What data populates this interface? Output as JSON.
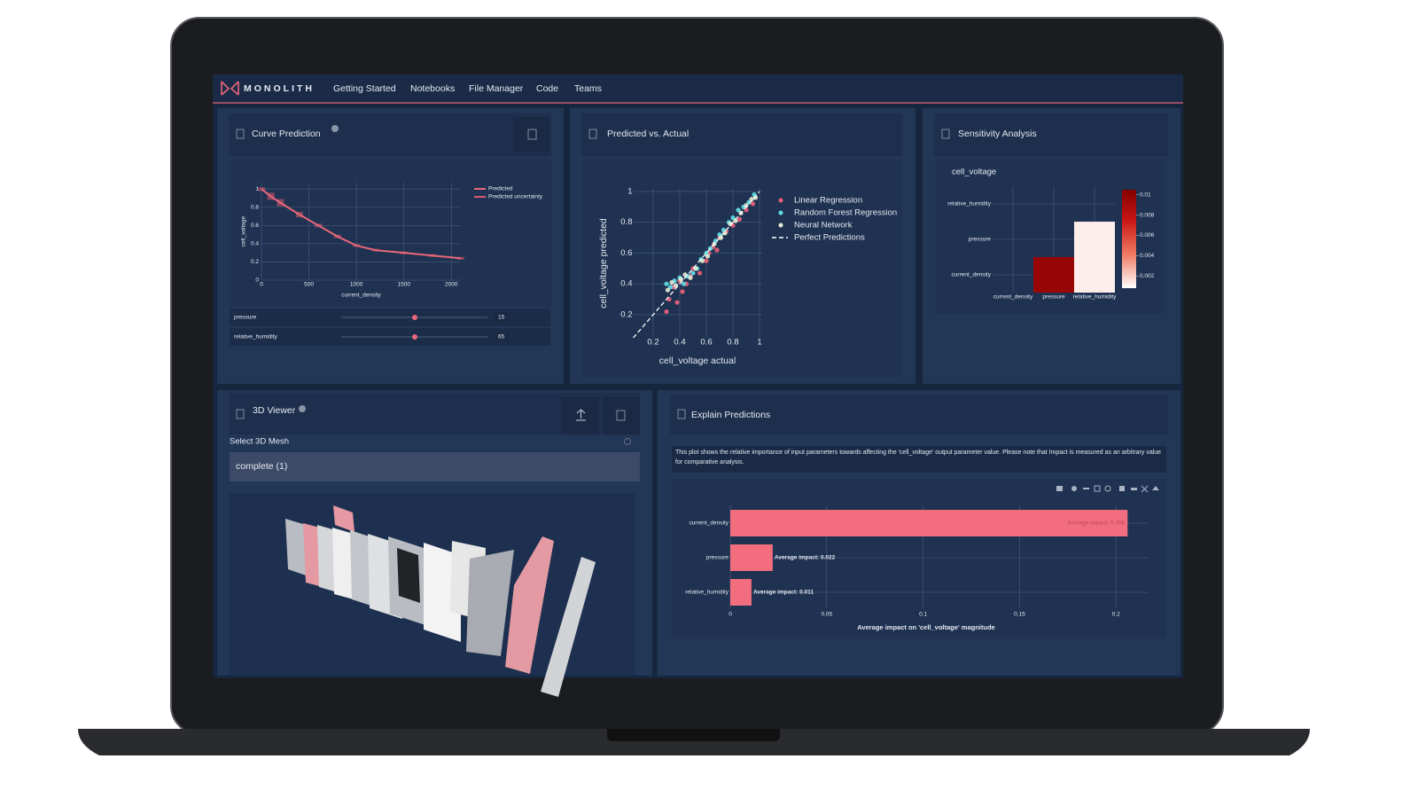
{
  "nav": {
    "brand": "MONOLITH",
    "items": [
      "Getting Started",
      "Notebooks",
      "File Manager",
      "Code",
      "Teams"
    ]
  },
  "curve_prediction": {
    "type": "line",
    "title": "Curve Prediction",
    "x_label": "current_density",
    "y_label": "cell_voltage",
    "x": [
      0,
      100,
      200,
      400,
      600,
      800,
      1000,
      1200,
      1500,
      1800,
      2100
    ],
    "series": [
      {
        "name": "Predicted",
        "color": "#e8677a",
        "values": [
          1,
          0.92,
          0.85,
          0.72,
          0.6,
          0.48,
          0.38,
          0.33,
          0.3,
          0.27,
          0.24
        ]
      },
      {
        "name": "Predicted uncertainty",
        "color": "#d85a70",
        "values": [
          0.02,
          0.04,
          0.04,
          0.03,
          0.02,
          0.02,
          0.015,
          0.015,
          0.015,
          0.015,
          0.015
        ]
      }
    ],
    "xlim": [
      0,
      2100
    ],
    "ylim": [
      0,
      1.07
    ],
    "xticks": [
      0,
      500,
      1000,
      1500,
      2000
    ],
    "yticks": [
      0,
      0.2,
      0.4,
      0.6,
      0.8,
      1
    ],
    "grid": true,
    "sliders": [
      {
        "name": "pressure",
        "value": 15
      },
      {
        "name": "relative_humidity",
        "value": 65
      }
    ]
  },
  "predicted_vs_actual": {
    "type": "scatter",
    "title": "Predicted vs. Actual",
    "x_label": "cell_voltage actual",
    "y_label": "cell_voltage predicted",
    "xlim": [
      0.05,
      1.02
    ],
    "ylim": [
      0.05,
      1.02
    ],
    "xticks": [
      0.2,
      0.4,
      0.6,
      0.8,
      1
    ],
    "yticks": [
      0.2,
      0.4,
      0.6,
      0.8,
      1
    ],
    "grid": true,
    "series": [
      {
        "name": "Linear Regression",
        "color": "#f0607a",
        "x": [
          0.3,
          0.32,
          0.35,
          0.38,
          0.4,
          0.42,
          0.45,
          0.48,
          0.5,
          0.55,
          0.6,
          0.62,
          0.65,
          0.68,
          0.7,
          0.75,
          0.8,
          0.85,
          0.9,
          0.95
        ],
        "values": [
          0.22,
          0.3,
          0.38,
          0.28,
          0.42,
          0.35,
          0.4,
          0.45,
          0.5,
          0.47,
          0.55,
          0.6,
          0.64,
          0.62,
          0.7,
          0.74,
          0.78,
          0.82,
          0.88,
          0.92
        ]
      },
      {
        "name": "Random Forest Regression",
        "color": "#5fe0e8",
        "x": [
          0.3,
          0.33,
          0.36,
          0.4,
          0.43,
          0.46,
          0.5,
          0.53,
          0.56,
          0.6,
          0.63,
          0.67,
          0.7,
          0.73,
          0.77,
          0.8,
          0.84,
          0.88,
          0.92,
          0.96
        ],
        "values": [
          0.4,
          0.38,
          0.42,
          0.44,
          0.4,
          0.45,
          0.47,
          0.5,
          0.56,
          0.6,
          0.63,
          0.68,
          0.72,
          0.75,
          0.8,
          0.83,
          0.88,
          0.9,
          0.93,
          0.98
        ]
      },
      {
        "name": "Neural Network",
        "color": "#e6ecd6",
        "x": [
          0.31,
          0.34,
          0.37,
          0.41,
          0.44,
          0.48,
          0.52,
          0.57,
          0.61,
          0.66,
          0.71,
          0.74,
          0.78,
          0.82,
          0.86,
          0.9,
          0.94,
          0.97
        ],
        "values": [
          0.36,
          0.41,
          0.39,
          0.43,
          0.46,
          0.44,
          0.5,
          0.55,
          0.58,
          0.66,
          0.7,
          0.73,
          0.79,
          0.81,
          0.86,
          0.91,
          0.95,
          0.96
        ]
      },
      {
        "name": "Perfect Predictions",
        "color": "#ffffff",
        "dash": true,
        "x": [
          0.05,
          1
        ],
        "values": [
          0.05,
          1
        ]
      }
    ]
  },
  "sensitivity_analysis": {
    "type": "heatmap",
    "title": "Sensitivity Analysis",
    "subtitle": "cell_voltage",
    "x_categories": [
      "current_density",
      "pressure",
      "relative_humidity"
    ],
    "y_categories": [
      "current_density",
      "pressure",
      "relative_humidity"
    ],
    "z": [
      [
        null,
        0.0095,
        0.0012
      ],
      [
        null,
        null,
        0.0012
      ],
      [
        null,
        null,
        null
      ]
    ],
    "zlim": [
      0.0008,
      0.0105
    ],
    "zticks": [
      0.002,
      0.004,
      0.006,
      0.008,
      0.01
    ]
  },
  "viewer_3d": {
    "title": "3D Viewer",
    "select_label": "Select 3D Mesh",
    "selected": "complete (1)"
  },
  "explain_predictions": {
    "type": "bar",
    "horizontal": true,
    "title": "Explain Predictions",
    "description": "This plot shows the relative importance of input parameters towards affecting the 'cell_voltage' output parameter value. Please note that Impact is measured as an arbitrary value for comparative analysis.",
    "categories": [
      "current_density",
      "pressure",
      "relative_humidity"
    ],
    "values": [
      0.206,
      0.022,
      0.011
    ],
    "value_labels": [
      "Average impact: 0.206",
      "Average impact: 0.022",
      "Average impact: 0.011"
    ],
    "color": "#f26d7d",
    "xlim": [
      0,
      0.21
    ],
    "xticks": [
      0,
      0.05,
      0.1,
      0.15,
      0.2
    ],
    "grid": true,
    "x_label": "Average impact on 'cell_voltage' magnitude"
  }
}
